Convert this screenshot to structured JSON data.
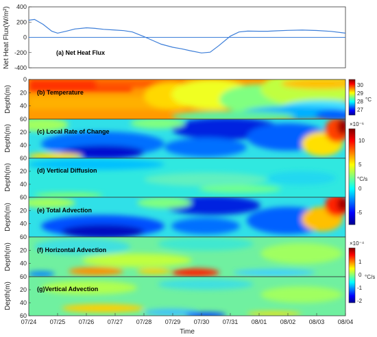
{
  "chart_data": [
    {
      "type": "line",
      "panel": "(a) Net Heat Flux",
      "ylabel": "Net Heat Flux(W/m²)",
      "ylim": [
        -400,
        400
      ],
      "yticks": [
        "400",
        "200",
        "0",
        "-200",
        "-400"
      ],
      "x": [
        0,
        0.2,
        0.5,
        0.8,
        1.0,
        1.3,
        1.6,
        2.0,
        2.3,
        2.6,
        3.0,
        3.3,
        3.6,
        4.0,
        4.3,
        4.6,
        5.0,
        5.3,
        5.6,
        6.0,
        6.3,
        6.6,
        7.0,
        7.3,
        7.6,
        8.0,
        8.3,
        8.6,
        9.0,
        9.5,
        10.0,
        10.5,
        11.0
      ],
      "values": [
        225,
        235,
        170,
        80,
        55,
        80,
        110,
        125,
        118,
        105,
        95,
        88,
        70,
        10,
        -40,
        -90,
        -130,
        -150,
        -175,
        -205,
        -195,
        -110,
        15,
        70,
        82,
        80,
        80,
        85,
        92,
        95,
        90,
        78,
        55
      ],
      "zero_line": true,
      "color": "#3b7dd8"
    },
    {
      "type": "heatmap",
      "panel": "(b) Temperature",
      "ylabel": "Depth(m)",
      "yticks": [
        "0",
        "20",
        "40",
        "60"
      ],
      "colorbar": {
        "ticks": [
          "30",
          "29",
          "28",
          "27"
        ],
        "unit": "°C",
        "exponent": ""
      }
    },
    {
      "type": "heatmap",
      "panel": "(c) Local Rate of Change",
      "ylabel": "Depth(m)",
      "yticks": [
        "20",
        "40",
        "60"
      ]
    },
    {
      "type": "heatmap",
      "panel": "(d) Vertical Diffusion",
      "ylabel": "Depth(m)",
      "yticks": [
        "20",
        "40",
        "60"
      ]
    },
    {
      "type": "heatmap",
      "panel": "(e) Total Advection",
      "ylabel": "Depth(m)",
      "yticks": [
        "20",
        "40",
        "60"
      ],
      "colorbar": {
        "ticks": [
          "10",
          "5",
          "0",
          "-5"
        ],
        "unit": "°C/s",
        "exponent": "×10⁻⁶"
      }
    },
    {
      "type": "heatmap",
      "panel": "(f) Horizontal Advection",
      "ylabel": "Depth(m)",
      "yticks": [
        "20",
        "40",
        "60"
      ]
    },
    {
      "type": "heatmap",
      "panel": "(g)Vertical Advection",
      "ylabel": "Depth(m)",
      "yticks": [
        "20",
        "40",
        "60"
      ],
      "colorbar": {
        "ticks": [
          "1",
          "0",
          "-1",
          "-2"
        ],
        "unit": "°C/s",
        "exponent": "×10⁻⁴"
      }
    }
  ],
  "xaxis": {
    "label": "Time",
    "ticks": [
      "07/24",
      "07/25",
      "07/26",
      "07/27",
      "07/28",
      "07/29",
      "07/30",
      "07/31",
      "08/01",
      "08/02",
      "08/03",
      "08/04"
    ]
  },
  "colormap": [
    "#00008f",
    "#0000ff",
    "#0080ff",
    "#00ffff",
    "#80ff80",
    "#ffff00",
    "#ff8000",
    "#ff0000",
    "#800000"
  ]
}
